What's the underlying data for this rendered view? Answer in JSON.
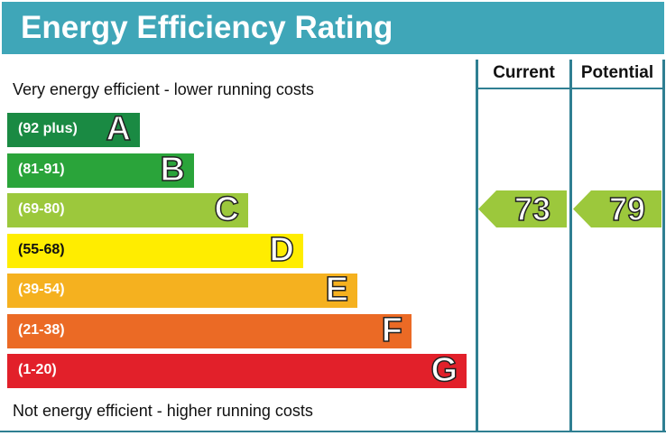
{
  "title": "Energy Efficiency Rating",
  "top_note": "Very energy efficient - lower running costs",
  "bottom_note": "Not energy efficient - higher running costs",
  "columns": [
    "Current",
    "Potential"
  ],
  "chart_data": {
    "type": "bar",
    "title": "Energy Efficiency Rating",
    "categories": [
      "A",
      "B",
      "C",
      "D",
      "E",
      "F",
      "G"
    ],
    "ranges": [
      "(92 plus)",
      "(81-91)",
      "(69-80)",
      "(55-68)",
      "(39-54)",
      "(21-38)",
      "(1-20)"
    ],
    "colors": [
      "#1a8a43",
      "#2aa43a",
      "#9cc83c",
      "#ffed00",
      "#f5b11f",
      "#eb6a25",
      "#e2202a"
    ],
    "current": {
      "value": 73,
      "band": "C",
      "color": "#9cc83c"
    },
    "potential": {
      "value": 79,
      "band": "C",
      "color": "#9cc83c"
    }
  }
}
